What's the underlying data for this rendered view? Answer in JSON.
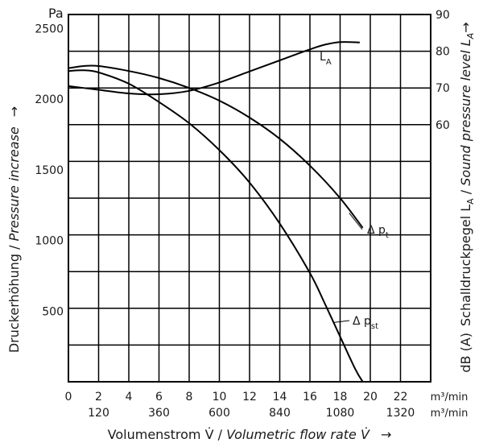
{
  "chart_data": {
    "type": "line",
    "grid": true,
    "left_axis": {
      "unit": "Pa",
      "ticks": [
        500,
        1000,
        1500,
        2000,
        2500
      ],
      "range": [
        0,
        2600
      ],
      "label_de": "Druckerhöhung",
      "label_sep": " / ",
      "label_en": "Pressure increase",
      "arrow": "→"
    },
    "right_axis": {
      "ticks": [
        60,
        70,
        80,
        90
      ],
      "range": [
        -10,
        90
      ],
      "unit": "dB (A)",
      "label_de": "Schalldruckpegel L",
      "label_de_sub": "A",
      "label_sep": " / ",
      "label_en": "Sound pressure level L",
      "label_en_sub": "A",
      "arrow": "→"
    },
    "x_axis": {
      "range": [
        0,
        24
      ],
      "ticks_m3min": [
        0,
        2,
        4,
        6,
        8,
        10,
        12,
        14,
        16,
        18,
        20,
        22
      ],
      "ticks_m3h": [
        120,
        360,
        600,
        840,
        1080,
        1320
      ],
      "unit_m3min": "m³/min",
      "unit_m3h": "m³/min",
      "label_de": "Volumenstrom V̇",
      "label_sep": " / ",
      "label_en": "Volumetric flow rate V̇",
      "arrow": "→"
    },
    "series": [
      {
        "name": "L",
        "name_sub": "A",
        "axis": "right",
        "x": [
          0,
          2,
          4,
          6,
          8,
          10,
          12,
          14,
          16,
          17,
          18,
          19.3
        ],
        "y": [
          70.5,
          69.5,
          68.5,
          68.3,
          69.2,
          71.5,
          74.5,
          77.5,
          80.5,
          81.8,
          82.5,
          82.4
        ]
      },
      {
        "name": "Δ p",
        "name_sub": "t",
        "axis": "left",
        "x": [
          0,
          1,
          2,
          4,
          6,
          8,
          10,
          12,
          14,
          16,
          18,
          19.5
        ],
        "y": [
          2220,
          2235,
          2235,
          2200,
          2150,
          2080,
          1990,
          1870,
          1720,
          1530,
          1300,
          1090
        ]
      },
      {
        "name": "Δ p",
        "name_sub": "st",
        "axis": "left",
        "x": [
          0,
          1,
          2,
          4,
          6,
          8,
          10,
          12,
          14,
          16,
          17,
          18,
          19,
          19.5
        ],
        "y": [
          2200,
          2205,
          2190,
          2110,
          1980,
          1830,
          1640,
          1410,
          1120,
          770,
          550,
          320,
          90,
          0
        ]
      }
    ]
  }
}
